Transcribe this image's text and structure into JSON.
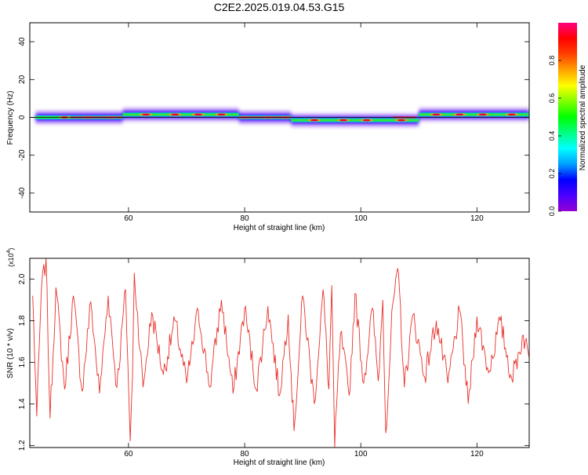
{
  "title": "C2E2.2025.019.04.53.G15",
  "chart_data": [
    {
      "type": "heatmap",
      "title": "C2E2.2025.019.04.53.G15",
      "xlabel": "Height of straight line (km)",
      "ylabel": "Frequency (Hz)",
      "xlim": [
        43,
        129
      ],
      "ylim": [
        -50,
        50
      ],
      "x_ticks": [
        "60",
        "80",
        "100",
        "120"
      ],
      "y_ticks": [
        "40",
        "20",
        "0",
        "-20",
        "-40"
      ],
      "grid": false,
      "colorbar": {
        "label": "Normalized spectral amplitude",
        "range": [
          0,
          1
        ],
        "ticks": [
          "0.0",
          "0.2",
          "0.4",
          "0.6",
          "0.8"
        ],
        "colormap": [
          "#9400d3",
          "#4b00ff",
          "#0000ff",
          "#00a0ff",
          "#00ffff",
          "#00ff80",
          "#00ff00",
          "#80ff00",
          "#ffff00",
          "#ffa000",
          "#ff4000",
          "#ff0000",
          "#ff0080"
        ]
      },
      "band": {
        "center_frequency": 0,
        "segments": [
          {
            "x": [
              44,
              59
            ],
            "offset": 0,
            "peaks": [
              49,
              53,
              57
            ]
          },
          {
            "x": [
              59,
              79
            ],
            "offset": 1.5,
            "peaks": [
              63,
              68,
              72,
              76
            ]
          },
          {
            "x": [
              79,
              88
            ],
            "offset": 0,
            "peaks": [
              80,
              84,
              87
            ]
          },
          {
            "x": [
              88,
              110
            ],
            "offset": -1.5,
            "peaks": [
              92,
              97,
              101,
              107
            ]
          },
          {
            "x": [
              110,
              129
            ],
            "offset": 1.5,
            "peaks": [
              113,
              117,
              121,
              126
            ]
          }
        ]
      }
    },
    {
      "type": "line",
      "xlabel": "Height of straight line (km)",
      "ylabel": "SNR (10 * v/v)",
      "y_multiplier": "(x10^4)",
      "xlim": [
        43,
        129
      ],
      "ylim": [
        1.19,
        2.1
      ],
      "x_ticks": [
        "60",
        "80",
        "100",
        "120"
      ],
      "y_ticks": [
        "1.2",
        "1.4",
        "1.6",
        "1.8",
        "2.0"
      ],
      "grid": false,
      "series": [
        {
          "color": "#e8302a",
          "x_range": [
            43,
            129
          ],
          "anchor_points": [
            [
              43.5,
              1.92
            ],
            [
              44.2,
              1.34
            ],
            [
              45.0,
              1.95
            ],
            [
              45.8,
              2.1
            ],
            [
              46.5,
              1.33
            ],
            [
              47.5,
              1.96
            ],
            [
              49.0,
              1.47
            ],
            [
              50.5,
              1.92
            ],
            [
              52.0,
              1.46
            ],
            [
              53.5,
              1.89
            ],
            [
              55.0,
              1.45
            ],
            [
              56.5,
              1.92
            ],
            [
              58.0,
              1.48
            ],
            [
              59.5,
              1.95
            ],
            [
              60.3,
              1.22
            ],
            [
              60.7,
              1.54
            ],
            [
              61.0,
              2.03
            ],
            [
              62.5,
              1.48
            ],
            [
              64.0,
              1.84
            ],
            [
              66.0,
              1.54
            ],
            [
              68.0,
              1.8
            ],
            [
              70.0,
              1.5
            ],
            [
              72.0,
              1.85
            ],
            [
              74.0,
              1.48
            ],
            [
              76.0,
              1.9
            ],
            [
              78.0,
              1.45
            ],
            [
              80.0,
              1.86
            ],
            [
              82.0,
              1.47
            ],
            [
              84.0,
              1.87
            ],
            [
              86.0,
              1.44
            ],
            [
              87.5,
              1.83
            ],
            [
              88.5,
              1.27
            ],
            [
              90.0,
              1.92
            ],
            [
              92.0,
              1.4
            ],
            [
              93.5,
              1.95
            ],
            [
              94.5,
              1.47
            ],
            [
              95.0,
              1.97
            ],
            [
              95.5,
              1.19
            ],
            [
              96.5,
              1.74
            ],
            [
              98.0,
              1.44
            ],
            [
              99.0,
              1.93
            ],
            [
              100.5,
              1.5
            ],
            [
              102.0,
              1.86
            ],
            [
              103.0,
              1.51
            ],
            [
              103.8,
              1.9
            ],
            [
              104.3,
              1.26
            ],
            [
              105.5,
              1.88
            ],
            [
              106.5,
              2.03
            ],
            [
              107.5,
              1.48
            ],
            [
              109.0,
              1.83
            ],
            [
              111.0,
              1.53
            ],
            [
              113.0,
              1.8
            ],
            [
              115.0,
              1.5
            ],
            [
              117.0,
              1.85
            ],
            [
              118.5,
              1.4
            ],
            [
              120.0,
              1.82
            ],
            [
              122.0,
              1.55
            ],
            [
              124.0,
              1.8
            ],
            [
              126.0,
              1.52
            ],
            [
              128.0,
              1.73
            ],
            [
              129.0,
              1.62
            ]
          ]
        }
      ]
    }
  ]
}
